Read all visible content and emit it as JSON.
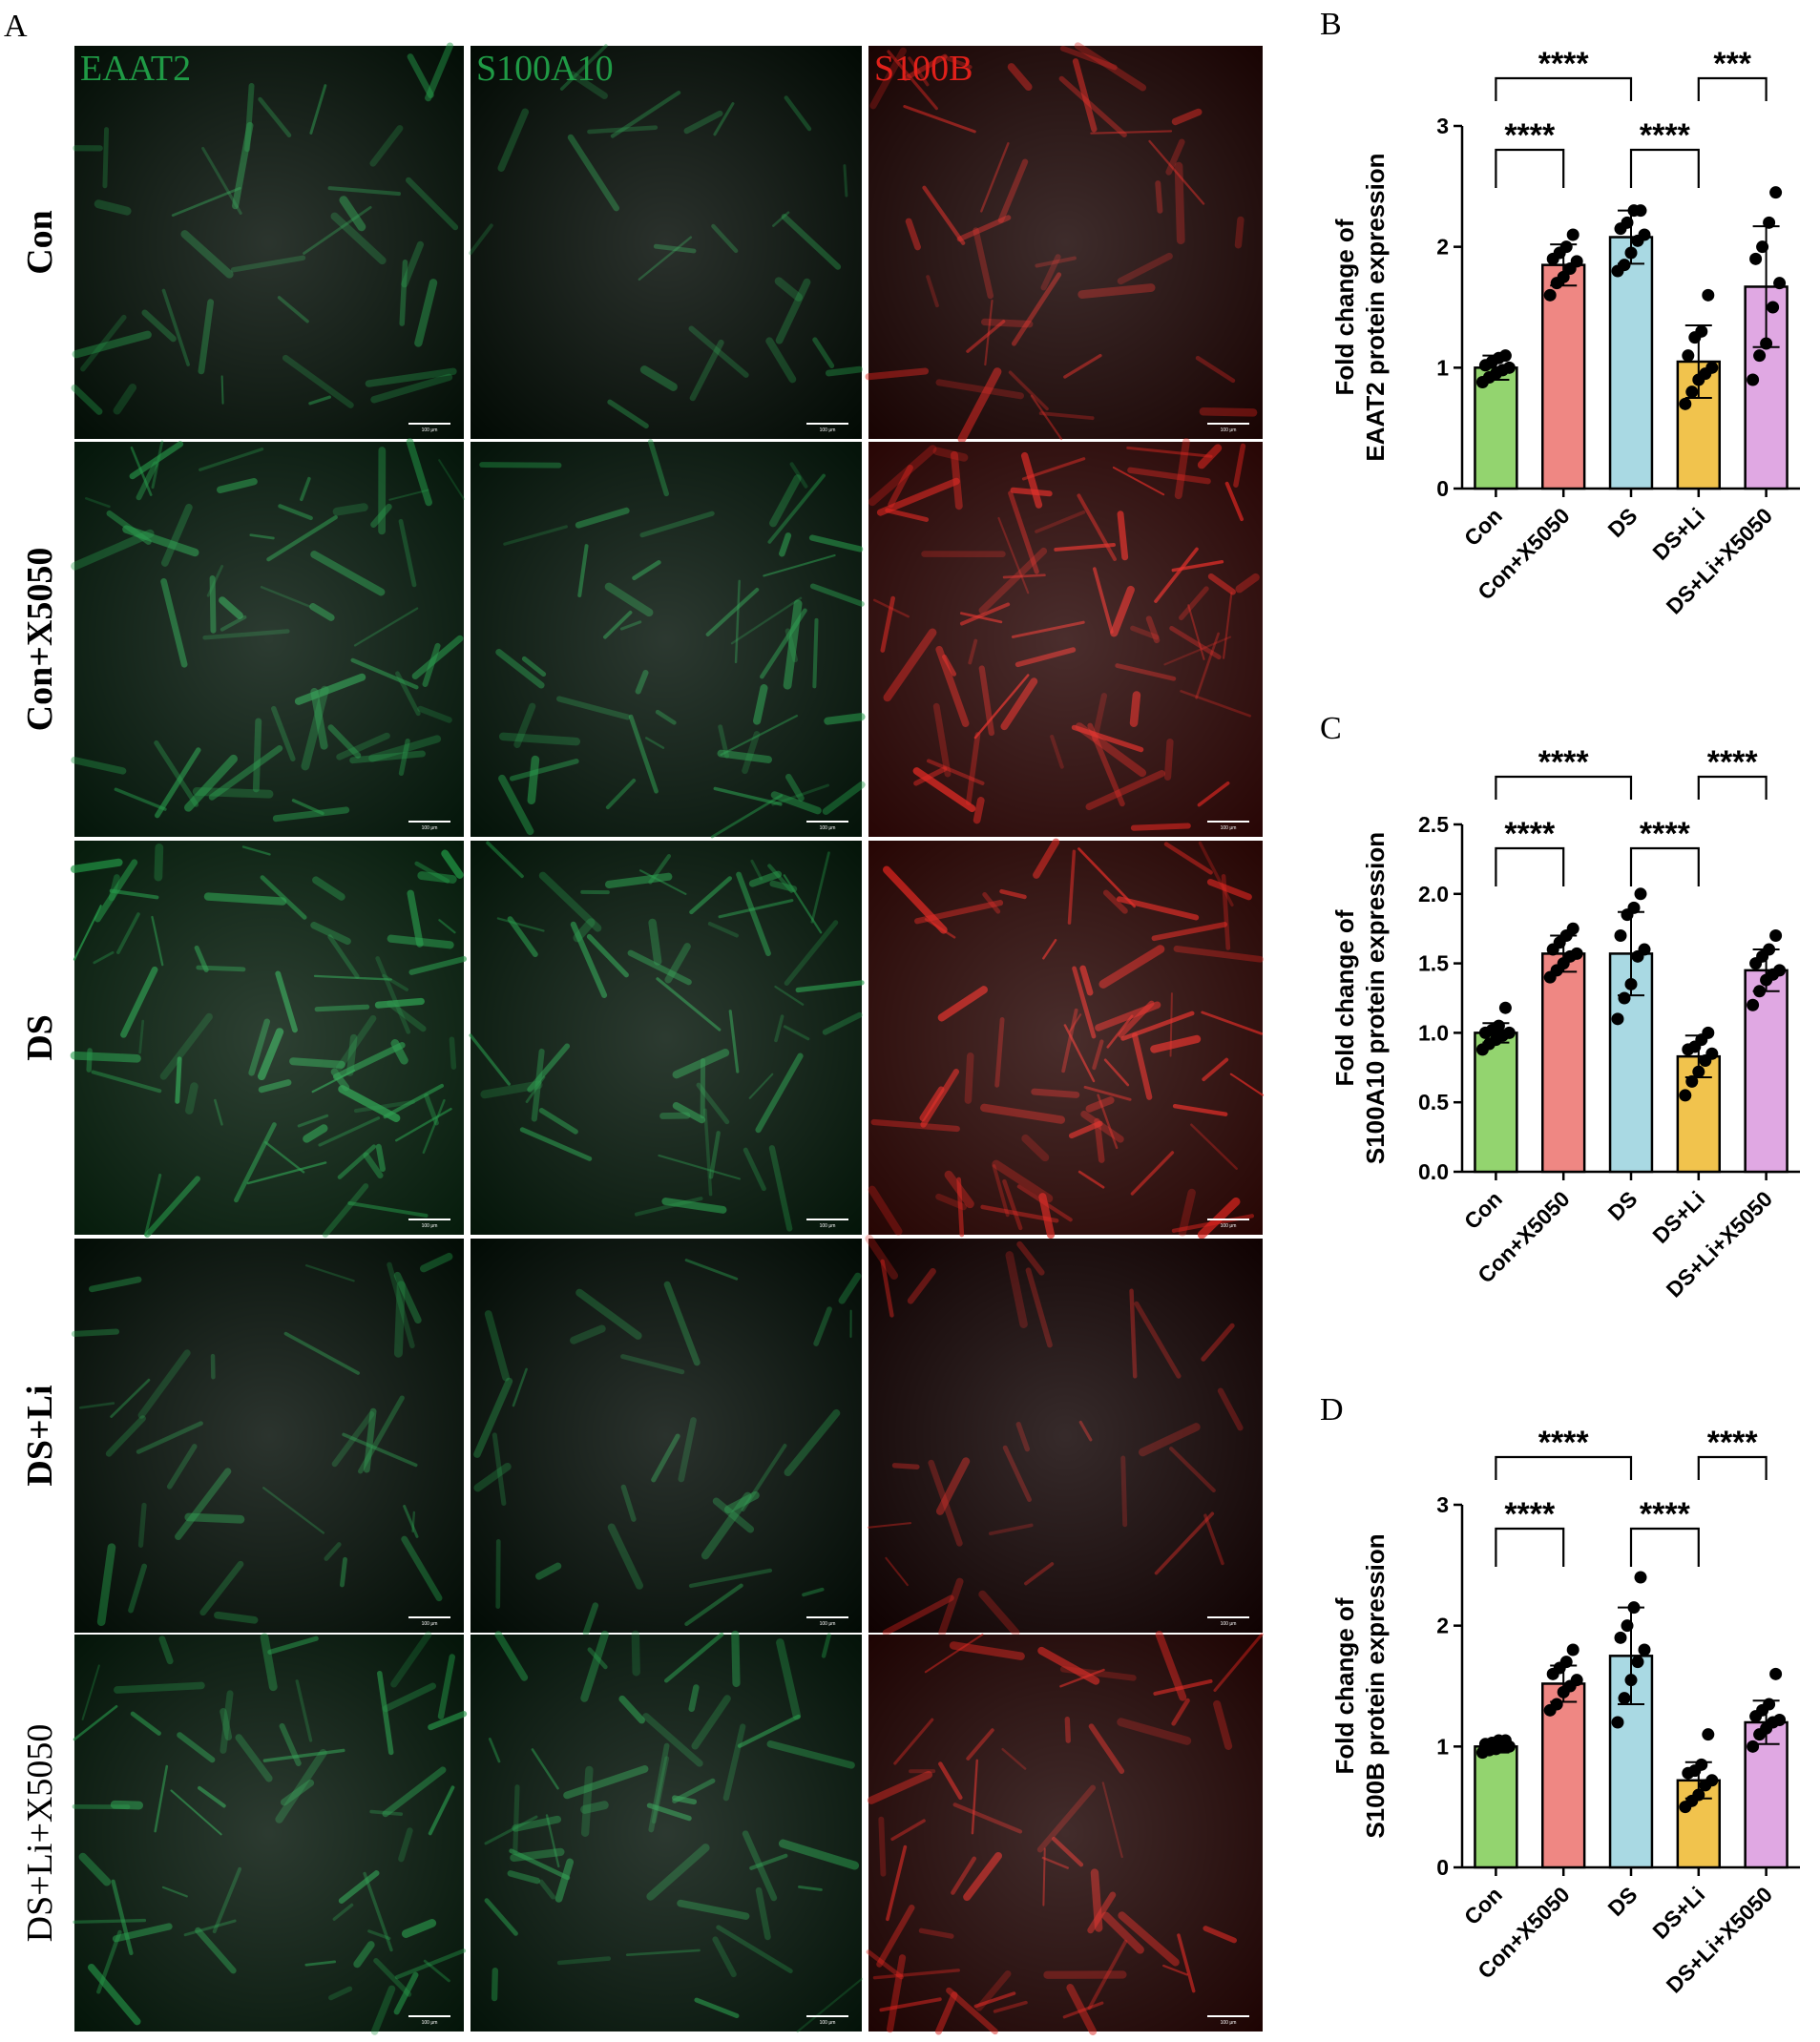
{
  "panel_a": {
    "label": "A",
    "channels": [
      {
        "name": "EAAT2",
        "color": "#1f9a45"
      },
      {
        "name": "S100A10",
        "color": "#1f9a45"
      },
      {
        "name": "S100B",
        "color": "#e0201a"
      }
    ],
    "rows": [
      "Con",
      "Con+X5050",
      "DS",
      "DS+Li",
      "DS+Li+X5050"
    ],
    "scale_bar": "100 μm"
  },
  "chart_data": [
    {
      "type": "bar",
      "label": "B",
      "ylabel": [
        "Fold change of",
        "EAAT2 protein expression"
      ],
      "categories": [
        "Con",
        "Con+X5050",
        "DS",
        "DS+Li",
        "DS+Li+X5050"
      ],
      "colors": [
        "#93d46f",
        "#ef8783",
        "#a9d9e3",
        "#f1c34d",
        "#e0a8e3"
      ],
      "values": [
        1.0,
        1.85,
        2.08,
        1.05,
        1.67
      ],
      "errors": [
        0.1,
        0.17,
        0.22,
        0.3,
        0.5
      ],
      "points": [
        [
          0.88,
          0.92,
          0.95,
          0.98,
          1.0,
          1.02,
          1.05,
          1.08,
          1.1
        ],
        [
          1.6,
          1.7,
          1.75,
          1.82,
          1.88,
          1.9,
          1.95,
          2.0,
          2.1
        ],
        [
          1.8,
          1.85,
          1.95,
          2.05,
          2.1,
          2.15,
          2.2,
          2.3,
          2.3
        ],
        [
          0.7,
          0.8,
          0.9,
          0.95,
          1.0,
          1.1,
          1.25,
          1.3,
          1.6
        ],
        [
          0.9,
          1.1,
          1.2,
          1.5,
          1.7,
          1.9,
          2.0,
          2.2,
          2.45
        ]
      ],
      "ylim": [
        0,
        3
      ],
      "yticks": [
        0,
        1,
        2,
        3
      ],
      "annotations": [
        {
          "text": "****",
          "pair": [
            "Con",
            "Con+X5050"
          ]
        },
        {
          "text": "****",
          "pair": [
            "DS",
            "DS+Li"
          ]
        },
        {
          "text": "****",
          "pair": [
            "Con",
            "DS"
          ]
        },
        {
          "text": "***",
          "pair": [
            "DS+Li",
            "DS+Li+X5050"
          ]
        }
      ]
    },
    {
      "type": "bar",
      "label": "C",
      "ylabel": [
        "Fold change of",
        "S100A10 protein expression"
      ],
      "categories": [
        "Con",
        "Con+X5050",
        "DS",
        "DS+Li",
        "DS+Li+X5050"
      ],
      "colors": [
        "#93d46f",
        "#ef8783",
        "#a9d9e3",
        "#f1c34d",
        "#e0a8e3"
      ],
      "values": [
        1.0,
        1.57,
        1.57,
        0.83,
        1.45
      ],
      "errors": [
        0.07,
        0.13,
        0.3,
        0.15,
        0.15
      ],
      "points": [
        [
          0.88,
          0.92,
          0.95,
          0.98,
          1.0,
          1.0,
          1.02,
          1.05,
          1.18
        ],
        [
          1.4,
          1.45,
          1.5,
          1.55,
          1.57,
          1.6,
          1.65,
          1.7,
          1.75
        ],
        [
          1.1,
          1.25,
          1.35,
          1.55,
          1.6,
          1.7,
          1.85,
          1.9,
          2.0
        ],
        [
          0.55,
          0.65,
          0.72,
          0.8,
          0.85,
          0.88,
          0.9,
          0.95,
          1.0
        ],
        [
          1.2,
          1.3,
          1.38,
          1.42,
          1.45,
          1.5,
          1.55,
          1.6,
          1.7
        ]
      ],
      "ylim": [
        0,
        2.5
      ],
      "yticks": [
        {
          "value": 0,
          "label": "0.0"
        },
        0.5,
        {
          "value": 1,
          "label": "1.0"
        },
        1.5,
        {
          "value": 2,
          "label": "2.0"
        },
        2.5
      ],
      "annotations": [
        {
          "text": "****",
          "pair": [
            "Con",
            "Con+X5050"
          ]
        },
        {
          "text": "****",
          "pair": [
            "DS",
            "DS+Li"
          ]
        },
        {
          "text": "****",
          "pair": [
            "Con",
            "DS"
          ]
        },
        {
          "text": "****",
          "pair": [
            "DS+Li",
            "DS+Li+X5050"
          ]
        }
      ]
    },
    {
      "type": "bar",
      "label": "D",
      "ylabel": [
        "Fold change of",
        "S100B protein expression"
      ],
      "categories": [
        "Con",
        "Con+X5050",
        "DS",
        "DS+Li",
        "DS+Li+X5050"
      ],
      "colors": [
        "#93d46f",
        "#ef8783",
        "#a9d9e3",
        "#f1c34d",
        "#e0a8e3"
      ],
      "values": [
        1.0,
        1.52,
        1.75,
        0.72,
        1.2
      ],
      "errors": [
        0.05,
        0.15,
        0.4,
        0.15,
        0.18
      ],
      "points": [
        [
          0.95,
          0.97,
          0.98,
          1.0,
          1.0,
          1.02,
          1.03,
          1.05,
          1.05
        ],
        [
          1.3,
          1.35,
          1.45,
          1.5,
          1.55,
          1.6,
          1.65,
          1.7,
          1.8
        ],
        [
          1.2,
          1.4,
          1.55,
          1.7,
          1.8,
          1.9,
          2.0,
          2.15,
          2.4
        ],
        [
          0.5,
          0.55,
          0.6,
          0.68,
          0.72,
          0.78,
          0.8,
          0.85,
          1.1
        ],
        [
          1.0,
          1.1,
          1.15,
          1.2,
          1.22,
          1.25,
          1.3,
          1.35,
          1.6
        ]
      ],
      "ylim": [
        0,
        3
      ],
      "yticks": [
        0,
        1,
        2,
        3
      ],
      "annotations": [
        {
          "text": "****",
          "pair": [
            "Con",
            "Con+X5050"
          ]
        },
        {
          "text": "****",
          "pair": [
            "DS",
            "DS+Li"
          ]
        },
        {
          "text": "****",
          "pair": [
            "Con",
            "DS"
          ]
        },
        {
          "text": "****",
          "pair": [
            "DS+Li",
            "DS+Li+X5050"
          ]
        }
      ]
    }
  ]
}
